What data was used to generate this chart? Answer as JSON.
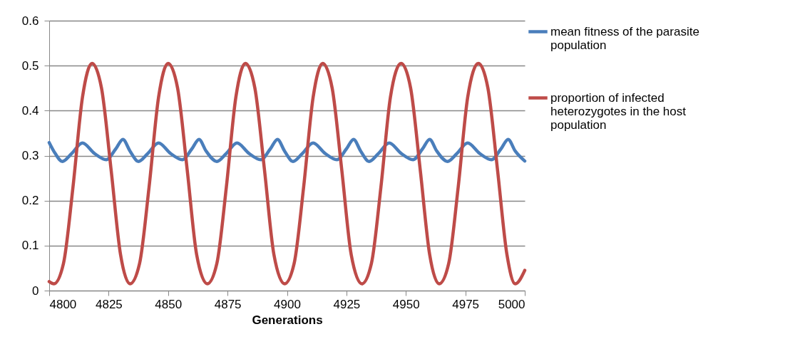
{
  "chart_data": {
    "type": "line",
    "xlabel": "Generations",
    "xlim": [
      4800,
      5000
    ],
    "xticks": [
      4800,
      4825,
      4850,
      4875,
      4900,
      4925,
      4950,
      4975,
      5000
    ],
    "ylim": [
      0,
      0.6
    ],
    "yticks": [
      0,
      0.1,
      0.2,
      0.3,
      0.4,
      0.5,
      0.6
    ],
    "grid": "y",
    "legend": "right",
    "line_style": "solid",
    "marker": "none",
    "series": [
      {
        "name": "mean fitness of the parasite population",
        "color": "#4a7ebb",
        "x": [
          4800,
          4802.5,
          4805.5,
          4809.5,
          4814,
          4819,
          4824,
          4828,
          4831,
          4834,
          4837.5,
          4841.5,
          4846,
          4851,
          4856,
          4860,
          4863,
          4866,
          4870.5,
          4874.5,
          4879,
          4884,
          4889,
          4893,
          4896,
          4899,
          4902.5,
          4906.5,
          4911,
          4916,
          4921,
          4925,
          4928,
          4931,
          4934.5,
          4938.5,
          4943,
          4948,
          4953,
          4957,
          4960,
          4963,
          4967.5,
          4971.5,
          4976,
          4981,
          4986,
          4990,
          4993,
          4996,
          5000
        ],
        "values": [
          0.329,
          0.305,
          0.287,
          0.305,
          0.328,
          0.305,
          0.291,
          0.315,
          0.336,
          0.31,
          0.287,
          0.305,
          0.328,
          0.305,
          0.291,
          0.315,
          0.336,
          0.31,
          0.287,
          0.305,
          0.328,
          0.305,
          0.291,
          0.315,
          0.336,
          0.31,
          0.287,
          0.305,
          0.328,
          0.305,
          0.291,
          0.315,
          0.336,
          0.31,
          0.287,
          0.305,
          0.328,
          0.305,
          0.291,
          0.315,
          0.336,
          0.31,
          0.287,
          0.305,
          0.328,
          0.305,
          0.291,
          0.315,
          0.336,
          0.31,
          0.288
        ]
      },
      {
        "name": "proportion of infected heterozygotes in the host population",
        "color": "#be4b48",
        "x": [
          4800,
          4802,
          4806,
          4810,
          4814,
          4818,
          4822,
          4826,
          4830,
          4834,
          4838,
          4842,
          4846,
          4850,
          4854,
          4858,
          4862,
          4866.5,
          4870.5,
          4874.5,
          4878.5,
          4882.5,
          4886.5,
          4890.5,
          4894.5,
          4899,
          4903,
          4907,
          4911,
          4915,
          4919,
          4923,
          4927,
          4931.5,
          4935.5,
          4939.5,
          4943.5,
          4948,
          4952,
          4956,
          4960,
          4964,
          4968,
          4972,
          4976,
          4980.5,
          4984.5,
          4988.5,
          4992.5,
          4996,
          5000
        ],
        "values": [
          0.02,
          0.015,
          0.06,
          0.23,
          0.43,
          0.505,
          0.45,
          0.27,
          0.08,
          0.015,
          0.06,
          0.23,
          0.43,
          0.505,
          0.45,
          0.27,
          0.08,
          0.015,
          0.06,
          0.23,
          0.43,
          0.505,
          0.45,
          0.27,
          0.08,
          0.015,
          0.06,
          0.23,
          0.43,
          0.505,
          0.45,
          0.27,
          0.08,
          0.015,
          0.06,
          0.23,
          0.43,
          0.505,
          0.45,
          0.27,
          0.08,
          0.015,
          0.06,
          0.23,
          0.43,
          0.505,
          0.45,
          0.27,
          0.08,
          0.015,
          0.045
        ]
      }
    ]
  }
}
